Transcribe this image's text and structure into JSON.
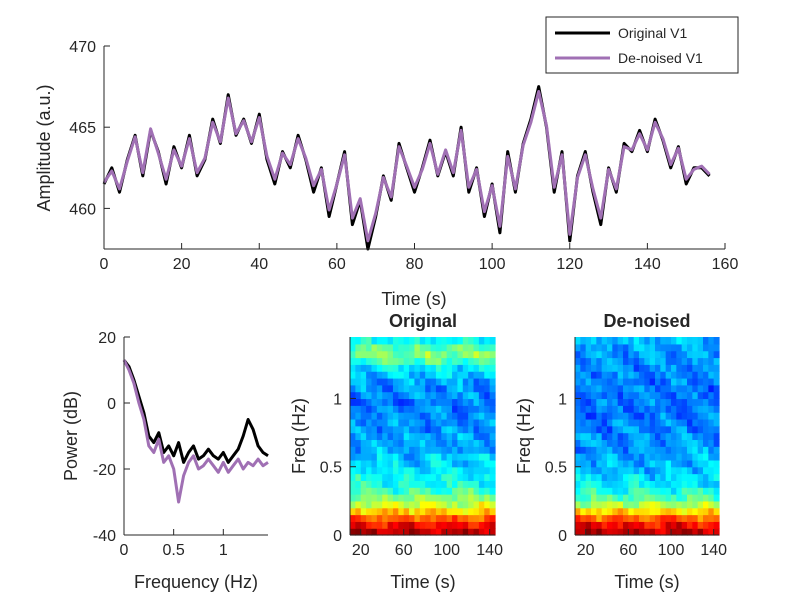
{
  "colors": {
    "original": "#000000",
    "denoised": "#a070b4",
    "axis": "#262626",
    "legend_border": "#262626"
  },
  "chart_data": [
    {
      "id": "timeseries",
      "type": "line",
      "xlabel": "Time (s)",
      "ylabel": "Amplitude (a.u.)",
      "xlim": [
        0,
        160
      ],
      "ylim": [
        457.5,
        470
      ],
      "xticks": [
        0,
        20,
        40,
        60,
        80,
        100,
        120,
        140,
        160
      ],
      "yticks": [
        460,
        465,
        470
      ],
      "grid": false,
      "legend_position": "top-right",
      "series": [
        {
          "name": "Original V1",
          "color": "#000000",
          "x": [
            0,
            2,
            4,
            6,
            8,
            10,
            12,
            14,
            16,
            18,
            20,
            22,
            24,
            26,
            28,
            30,
            32,
            34,
            36,
            38,
            40,
            42,
            44,
            46,
            48,
            50,
            52,
            54,
            56,
            58,
            60,
            62,
            64,
            66,
            68,
            70,
            72,
            74,
            76,
            78,
            80,
            82,
            84,
            86,
            88,
            90,
            92,
            94,
            96,
            98,
            100,
            102,
            104,
            106,
            108,
            110,
            112,
            114,
            116,
            118,
            120,
            122,
            124,
            126,
            128,
            130,
            132,
            134,
            136,
            138,
            140,
            142,
            144,
            146,
            148,
            150,
            152,
            154,
            156
          ],
          "y": [
            461.5,
            462.5,
            461.0,
            463.0,
            464.5,
            462.0,
            464.8,
            463.5,
            461.5,
            463.8,
            462.5,
            464.5,
            462.0,
            463.0,
            465.5,
            464.0,
            467.0,
            464.5,
            465.5,
            464.0,
            465.8,
            463.0,
            461.5,
            463.5,
            462.5,
            464.5,
            463.0,
            461.0,
            462.5,
            459.5,
            461.5,
            463.5,
            459.0,
            460.5,
            457.5,
            459.5,
            462.0,
            460.5,
            464.0,
            462.5,
            461.0,
            462.5,
            464.2,
            462.0,
            463.5,
            462.0,
            465.0,
            461.0,
            462.5,
            459.5,
            461.5,
            458.5,
            463.5,
            461.0,
            464.0,
            465.5,
            467.5,
            465.0,
            461.0,
            463.5,
            458.0,
            462.0,
            463.5,
            461.0,
            459.0,
            462.5,
            461.0,
            464.0,
            463.5,
            464.8,
            463.5,
            465.5,
            464.2,
            462.5,
            463.8,
            461.5,
            462.5,
            462.5,
            462.0
          ]
        },
        {
          "name": "De-noised V1",
          "color": "#a070b4",
          "x": [
            0,
            2,
            4,
            6,
            8,
            10,
            12,
            14,
            16,
            18,
            20,
            22,
            24,
            26,
            28,
            30,
            32,
            34,
            36,
            38,
            40,
            42,
            44,
            46,
            48,
            50,
            52,
            54,
            56,
            58,
            60,
            62,
            64,
            66,
            68,
            70,
            72,
            74,
            76,
            78,
            80,
            82,
            84,
            86,
            88,
            90,
            92,
            94,
            96,
            98,
            100,
            102,
            104,
            106,
            108,
            110,
            112,
            114,
            116,
            118,
            120,
            122,
            124,
            126,
            128,
            130,
            132,
            134,
            136,
            138,
            140,
            142,
            144,
            146,
            148,
            150,
            152,
            154,
            156
          ],
          "y": [
            461.6,
            462.3,
            461.2,
            462.9,
            464.4,
            462.2,
            464.9,
            463.4,
            461.8,
            463.6,
            462.6,
            464.3,
            462.2,
            463.1,
            465.3,
            464.1,
            466.8,
            464.6,
            465.4,
            464.1,
            465.6,
            463.2,
            461.8,
            463.4,
            462.7,
            464.3,
            463.1,
            461.4,
            462.4,
            459.9,
            461.5,
            463.3,
            459.4,
            460.6,
            458.0,
            459.7,
            461.9,
            460.7,
            463.8,
            462.6,
            461.3,
            462.4,
            464.0,
            462.1,
            463.6,
            462.2,
            464.8,
            461.3,
            462.4,
            459.8,
            461.4,
            458.9,
            463.2,
            461.2,
            463.9,
            465.3,
            467.2,
            465.1,
            461.3,
            463.3,
            458.4,
            461.9,
            463.3,
            461.2,
            459.4,
            462.4,
            461.2,
            463.8,
            463.6,
            464.6,
            463.6,
            465.3,
            464.3,
            462.7,
            463.7,
            461.8,
            462.4,
            462.6,
            462.1
          ]
        }
      ]
    },
    {
      "id": "psd",
      "type": "line",
      "xlabel": "Frequency (Hz)",
      "ylabel": "Power (dB)",
      "xlim": [
        0,
        1.45
      ],
      "ylim": [
        -40,
        20
      ],
      "xticks": [
        0,
        0.5,
        1
      ],
      "xtick_labels": [
        "0",
        "0.5",
        "1"
      ],
      "yticks": [
        -40,
        -20,
        0,
        20
      ],
      "grid": false,
      "series": [
        {
          "color": "#000000",
          "x": [
            0.0,
            0.05,
            0.1,
            0.15,
            0.2,
            0.25,
            0.3,
            0.35,
            0.4,
            0.45,
            0.5,
            0.55,
            0.6,
            0.65,
            0.7,
            0.75,
            0.8,
            0.85,
            0.9,
            0.95,
            1.0,
            1.05,
            1.1,
            1.15,
            1.2,
            1.25,
            1.3,
            1.35,
            1.4,
            1.45
          ],
          "y": [
            13,
            11,
            7,
            2,
            -3,
            -10,
            -12,
            -9,
            -15,
            -13,
            -16,
            -12,
            -18,
            -15,
            -13,
            -17,
            -16,
            -14,
            -16,
            -17,
            -15,
            -18,
            -16,
            -14,
            -10,
            -5,
            -8,
            -13,
            -15,
            -16
          ]
        },
        {
          "color": "#a070b4",
          "x": [
            0.0,
            0.05,
            0.1,
            0.15,
            0.2,
            0.25,
            0.3,
            0.35,
            0.4,
            0.45,
            0.5,
            0.55,
            0.6,
            0.65,
            0.7,
            0.75,
            0.8,
            0.85,
            0.9,
            0.95,
            1.0,
            1.05,
            1.1,
            1.15,
            1.2,
            1.25,
            1.3,
            1.35,
            1.4,
            1.45
          ],
          "y": [
            13,
            10,
            6,
            0,
            -5,
            -13,
            -15,
            -11,
            -18,
            -16,
            -20,
            -30,
            -22,
            -18,
            -16,
            -20,
            -19,
            -17,
            -19,
            -21,
            -18,
            -21,
            -19,
            -17,
            -20,
            -18,
            -19,
            -17,
            -19,
            -18
          ]
        }
      ]
    },
    {
      "id": "spectrogram-original",
      "type": "heatmap",
      "title": "Original",
      "xlabel": "Time (s)",
      "ylabel": "Freq (Hz)",
      "xlim": [
        10,
        145
      ],
      "ylim": [
        0,
        1.45
      ],
      "xticks": [
        20,
        60,
        100,
        140
      ],
      "yticks": [
        0,
        0.5,
        1
      ],
      "yticklabels": [
        "0",
        "0.5",
        "1"
      ],
      "rows": 29,
      "cols": 27,
      "colormap": "jet",
      "band_profile": [
        0.95,
        0.88,
        0.78,
        0.68,
        0.58,
        0.5,
        0.44,
        0.4,
        0.38,
        0.36,
        0.34,
        0.32,
        0.3,
        0.29,
        0.28,
        0.27,
        0.26,
        0.26,
        0.25,
        0.25,
        0.26,
        0.27,
        0.29,
        0.32,
        0.36,
        0.44,
        0.5,
        0.46,
        0.38
      ]
    },
    {
      "id": "spectrogram-denoised",
      "type": "heatmap",
      "title": "De-noised",
      "xlabel": "Time (s)",
      "ylabel": "Freq (Hz)",
      "xlim": [
        10,
        145
      ],
      "ylim": [
        0,
        1.45
      ],
      "xticks": [
        20,
        60,
        100,
        140
      ],
      "yticks": [
        0,
        0.5,
        1
      ],
      "yticklabels": [
        "0",
        "0.5",
        "1"
      ],
      "rows": 29,
      "cols": 27,
      "colormap": "jet",
      "band_profile": [
        0.95,
        0.88,
        0.78,
        0.66,
        0.55,
        0.46,
        0.4,
        0.36,
        0.34,
        0.32,
        0.3,
        0.29,
        0.28,
        0.27,
        0.26,
        0.25,
        0.25,
        0.24,
        0.24,
        0.24,
        0.24,
        0.24,
        0.25,
        0.25,
        0.26,
        0.27,
        0.28,
        0.29,
        0.3
      ]
    }
  ]
}
